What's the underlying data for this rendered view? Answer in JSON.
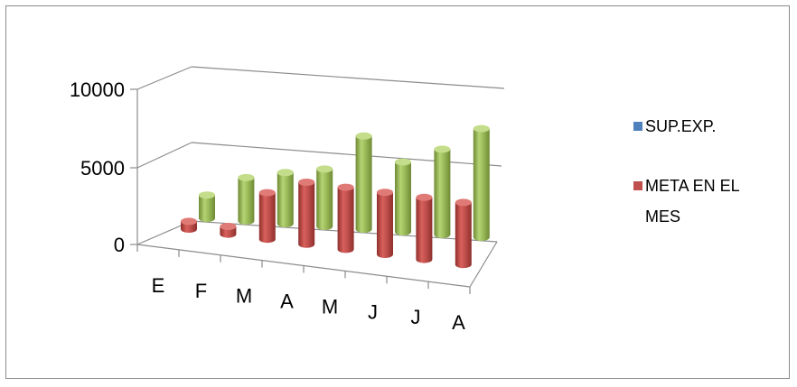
{
  "chart_data": {
    "type": "bar",
    "categories": [
      "E",
      "F",
      "M",
      "A",
      "M",
      "J",
      "J",
      "A"
    ],
    "ylim": [
      0,
      10000
    ],
    "yticks": [
      "0",
      "5000",
      "10000"
    ],
    "series": [
      {
        "name": "SUP.EXP.",
        "color": "#4f81bd",
        "values": [
          0,
          0,
          0,
          0,
          0,
          0,
          0,
          0
        ]
      },
      {
        "name": "META EN EL MES",
        "color": "#c0504d",
        "values": [
          500,
          500,
          3000,
          4000,
          4000,
          4000,
          4000,
          4000
        ]
      },
      {
        "name": "",
        "color": "#9bbb59",
        "values": [
          1500,
          2800,
          3300,
          3700,
          6000,
          4500,
          5500,
          7000
        ]
      }
    ],
    "legend_position": "right",
    "grid": true
  },
  "legend": {
    "items": [
      {
        "label": "SUP.EXP.",
        "color": "#4f81bd"
      },
      {
        "label_line1": "META EN EL",
        "label_line2": "MES",
        "color": "#c0504d"
      }
    ]
  }
}
